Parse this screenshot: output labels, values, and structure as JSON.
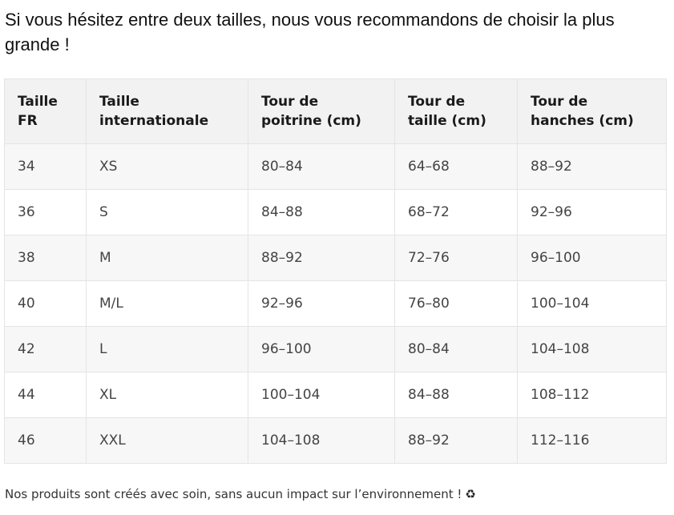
{
  "intro_text": "Si vous hésitez entre deux tailles, nous vous recommandons de choisir la plus grande !",
  "table": {
    "headers": [
      "Taille FR",
      "Taille internationale",
      "Tour de poitrine (cm)",
      "Tour de taille (cm)",
      "Tour de hanches (cm)"
    ],
    "rows": [
      [
        "34",
        "XS",
        "80–84",
        "64–68",
        "88–92"
      ],
      [
        "36",
        "S",
        "84–88",
        "68–72",
        "92–96"
      ],
      [
        "38",
        "M",
        "88–92",
        "72–76",
        "96–100"
      ],
      [
        "40",
        "M/L",
        "92–96",
        "76–80",
        "100–104"
      ],
      [
        "42",
        "L",
        "96–100",
        "80–84",
        "104–108"
      ],
      [
        "44",
        "XL",
        "100–104",
        "84–88",
        "108–112"
      ],
      [
        "46",
        "XXL",
        "104–108",
        "88–92",
        "112–116"
      ]
    ]
  },
  "footer": {
    "note": "Nos produits sont créés avec soin, sans aucun impact sur l’environnement !",
    "icon": "recycle-icon",
    "icon_glyph": "♻"
  }
}
